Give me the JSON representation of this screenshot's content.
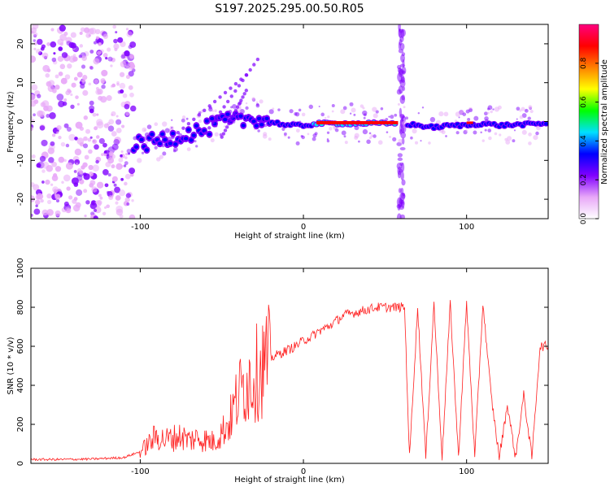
{
  "title": "S197.2025.295.00.50.R05",
  "chart_data": [
    {
      "type": "heatmap",
      "title": "S197.2025.295.00.50.R05",
      "xlabel": "Height of straight line (km)",
      "ylabel": "Frequency (Hz)",
      "xlim": [
        -167,
        150
      ],
      "ylim": [
        -25,
        25
      ],
      "xticks": [
        -100,
        0,
        100
      ],
      "yticks": [
        -20,
        -10,
        0,
        10,
        20
      ],
      "colorbar": {
        "label": "Normalized spectral amplitude",
        "range": [
          0.0,
          1.0
        ],
        "ticks": [
          0.0,
          0.2,
          0.4,
          0.6,
          0.8
        ],
        "tick_labels": [
          "0.0",
          "0.2",
          "0.4",
          "0.6",
          "0.8"
        ],
        "colors": [
          "#ffffff",
          "#e8a8f8",
          "#8000ff",
          "#0000ff",
          "#00e0ff",
          "#00ff00",
          "#ffff00",
          "#ff8000",
          "#ff0000",
          "#ff0080"
        ]
      },
      "ridge": [
        {
          "x": -100,
          "y": -6
        },
        {
          "x": -90,
          "y": -5
        },
        {
          "x": -80,
          "y": -4
        },
        {
          "x": -70,
          "y": -3
        },
        {
          "x": -60,
          "y": -2
        },
        {
          "x": -50,
          "y": 0
        },
        {
          "x": -40,
          "y": 0
        },
        {
          "x": -30,
          "y": 1
        },
        {
          "x": -20,
          "y": 0
        },
        {
          "x": -10,
          "y": -1
        },
        {
          "x": 0,
          "y": -1
        },
        {
          "x": 10,
          "y": -0.5
        },
        {
          "x": 60,
          "y": -0.5
        },
        {
          "x": 70,
          "y": -1
        },
        {
          "x": 80,
          "y": -1.5
        },
        {
          "x": 90,
          "y": -1
        },
        {
          "x": 100,
          "y": -1
        },
        {
          "x": 110,
          "y": -0.5
        },
        {
          "x": 120,
          "y": -1
        },
        {
          "x": 150,
          "y": -0.5
        }
      ],
      "noise_region": {
        "x_from": -167,
        "x_to": -104
      },
      "gap_x": 60
    },
    {
      "type": "line",
      "xlabel": "Height of straight line (km)",
      "ylabel": "SNR (10 * v/v)",
      "xlim": [
        -167,
        150
      ],
      "ylim": [
        0,
        1000
      ],
      "xticks": [
        -100,
        0,
        100
      ],
      "yticks": [
        0,
        200,
        400,
        600,
        800,
        1000
      ],
      "color": "#ff2020",
      "series": [
        {
          "name": "SNR",
          "x": [
            -167,
            -150,
            -130,
            -110,
            -100,
            -95,
            -90,
            -85,
            -80,
            -75,
            -70,
            -65,
            -60,
            -55,
            -50,
            -45,
            -40,
            -35,
            -30,
            -25,
            -20,
            -15,
            -10,
            -5,
            0,
            5,
            10,
            15,
            20,
            25,
            30,
            35,
            40,
            45,
            50,
            55,
            60,
            62,
            65,
            70,
            75,
            80,
            85,
            90,
            95,
            100,
            105,
            110,
            115,
            120,
            125,
            130,
            135,
            140,
            145,
            150
          ],
          "values": [
            20,
            20,
            22,
            30,
            60,
            100,
            140,
            120,
            130,
            140,
            120,
            130,
            120,
            110,
            160,
            220,
            350,
            420,
            450,
            500,
            540,
            560,
            580,
            600,
            630,
            650,
            680,
            700,
            730,
            760,
            770,
            780,
            790,
            800,
            800,
            800,
            800,
            800,
            30,
            800,
            30,
            820,
            30,
            820,
            30,
            820,
            30,
            820,
            350,
            30,
            300,
            30,
            350,
            30,
            600,
            600
          ]
        }
      ]
    }
  ]
}
